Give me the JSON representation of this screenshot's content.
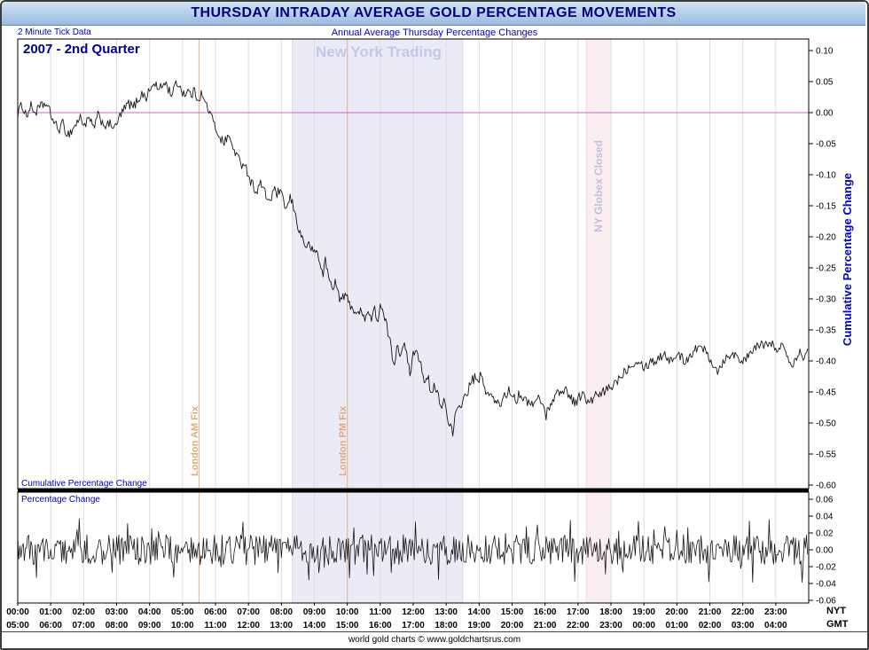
{
  "title": "THURSDAY INTRADAY AVERAGE GOLD PERCENTAGE MOVEMENTS",
  "subheader": {
    "left": "2 Minute Tick Data",
    "center": "Annual Average Thursday Percentage Changes"
  },
  "footer": "world gold charts © www.goldchartsrus.com",
  "labels": {
    "quarter": "2007 - 2nd Quarter",
    "ny_trading": "New York Trading",
    "london_am": "London AM Fix",
    "london_pm": "London PM Fix",
    "globex": "NY Globex Closed",
    "cum_axis": "Cumulative Percentage Change",
    "cum_panel": "Cumulative Percentage Change",
    "pct_panel": "Percentage Change",
    "nyt": "NYT",
    "gmt": "GMT"
  },
  "colors": {
    "series": "#161616",
    "grid": "#dcdcdc",
    "zero_line": "#c965c9",
    "ny_band": "#ebebf8",
    "ny_band_edge": "#d6d6ef",
    "globex_band": "#fceef0",
    "globex_band_edge": "#f2d8da",
    "fix_line": "#e8b287",
    "axis_text": "#000000",
    "blue_text": "#0000cd",
    "title_text": "#000080"
  },
  "chart_data": {
    "type": "line",
    "title": "THURSDAY INTRADAY AVERAGE GOLD PERCENTAGE MOVEMENTS",
    "subtitle": "Annual Average Thursday Percentage Changes",
    "period_label": "2007 - 2nd Quarter",
    "x_axis": {
      "unit": "time of day (2 minute ticks)",
      "nyt_labels": [
        "00:00",
        "01:00",
        "02:00",
        "03:00",
        "04:00",
        "05:00",
        "06:00",
        "07:00",
        "08:00",
        "09:00",
        "10:00",
        "11:00",
        "12:00",
        "13:00",
        "14:00",
        "15:00",
        "16:00",
        "17:00",
        "18:00",
        "19:00",
        "20:00",
        "21:00",
        "22:00",
        "23:00"
      ],
      "gmt_labels": [
        "05:00",
        "06:00",
        "07:00",
        "08:00",
        "09:00",
        "10:00",
        "11:00",
        "12:00",
        "13:00",
        "14:00",
        "15:00",
        "16:00",
        "17:00",
        "18:00",
        "19:00",
        "20:00",
        "21:00",
        "22:00",
        "23:00",
        "00:00",
        "01:00",
        "02:00",
        "03:00",
        "04:00"
      ]
    },
    "annotations": {
      "ny_trading_band": {
        "label": "New York Trading",
        "start_min": 500,
        "end_min": 810
      },
      "globex_band": {
        "label": "NY Globex Closed",
        "start_min": 1035,
        "end_min": 1080
      },
      "london_am_fix_min": 330,
      "london_pm_fix_min": 600
    },
    "panels": [
      {
        "name": "cumulative",
        "ylabel": "Cumulative Percentage Change",
        "ylim": [
          -0.6,
          0.1
        ],
        "yticks": [
          0.1,
          0.05,
          0.0,
          -0.05,
          -0.1,
          -0.15,
          -0.2,
          -0.25,
          -0.3,
          -0.35,
          -0.4,
          -0.45,
          -0.5,
          -0.55,
          -0.6
        ],
        "zero_line": 0.0,
        "series": {
          "name": "cumulative_pct_change",
          "seed": 1234,
          "tick_noise": 0.008,
          "points": [
            [
              0,
              0.0
            ],
            [
              8,
              0.012
            ],
            [
              16,
              -0.005
            ],
            [
              24,
              0.01
            ],
            [
              32,
              0.0
            ],
            [
              40,
              0.008
            ],
            [
              50,
              0.015
            ],
            [
              58,
              0.002
            ],
            [
              66,
              -0.015
            ],
            [
              74,
              -0.028
            ],
            [
              82,
              -0.018
            ],
            [
              90,
              -0.035
            ],
            [
              98,
              -0.03
            ],
            [
              106,
              -0.018
            ],
            [
              114,
              -0.008
            ],
            [
              122,
              -0.02
            ],
            [
              130,
              -0.01
            ],
            [
              138,
              -0.025
            ],
            [
              146,
              -0.005
            ],
            [
              154,
              -0.015
            ],
            [
              162,
              -0.022
            ],
            [
              170,
              -0.018
            ],
            [
              178,
              -0.025
            ],
            [
              186,
              -0.005
            ],
            [
              194,
              0.005
            ],
            [
              202,
              0.015
            ],
            [
              210,
              0.008
            ],
            [
              218,
              0.02
            ],
            [
              226,
              0.03
            ],
            [
              234,
              0.025
            ],
            [
              242,
              0.038
            ],
            [
              250,
              0.048
            ],
            [
              256,
              0.035
            ],
            [
              262,
              0.042
            ],
            [
              268,
              0.05
            ],
            [
              274,
              0.038
            ],
            [
              280,
              0.03
            ],
            [
              286,
              0.042
            ],
            [
              292,
              0.048
            ],
            [
              298,
              0.036
            ],
            [
              304,
              0.03
            ],
            [
              310,
              0.035
            ],
            [
              316,
              0.028
            ],
            [
              322,
              0.035
            ],
            [
              328,
              0.022
            ],
            [
              334,
              0.03
            ],
            [
              340,
              0.018
            ],
            [
              346,
              0.008
            ],
            [
              352,
              -0.005
            ],
            [
              358,
              -0.02
            ],
            [
              364,
              -0.032
            ],
            [
              370,
              -0.042
            ],
            [
              376,
              -0.05
            ],
            [
              382,
              -0.036
            ],
            [
              388,
              -0.048
            ],
            [
              394,
              -0.06
            ],
            [
              400,
              -0.07
            ],
            [
              406,
              -0.085
            ],
            [
              412,
              -0.078
            ],
            [
              418,
              -0.095
            ],
            [
              424,
              -0.11
            ],
            [
              430,
              -0.12
            ],
            [
              436,
              -0.128
            ],
            [
              442,
              -0.112
            ],
            [
              448,
              -0.126
            ],
            [
              454,
              -0.138
            ],
            [
              460,
              -0.142
            ],
            [
              466,
              -0.125
            ],
            [
              472,
              -0.13
            ],
            [
              478,
              -0.128
            ],
            [
              484,
              -0.145
            ],
            [
              490,
              -0.155
            ],
            [
              496,
              -0.138
            ],
            [
              502,
              -0.152
            ],
            [
              508,
              -0.175
            ],
            [
              514,
              -0.195
            ],
            [
              520,
              -0.205
            ],
            [
              526,
              -0.218
            ],
            [
              532,
              -0.212
            ],
            [
              538,
              -0.228
            ],
            [
              544,
              -0.22
            ],
            [
              550,
              -0.245
            ],
            [
              556,
              -0.258
            ],
            [
              560,
              -0.238
            ],
            [
              566,
              -0.265
            ],
            [
              572,
              -0.282
            ],
            [
              578,
              -0.272
            ],
            [
              584,
              -0.295
            ],
            [
              590,
              -0.302
            ],
            [
              596,
              -0.292
            ],
            [
              602,
              -0.305
            ],
            [
              608,
              -0.312
            ],
            [
              614,
              -0.32
            ],
            [
              620,
              -0.328
            ],
            [
              626,
              -0.315
            ],
            [
              632,
              -0.33
            ],
            [
              638,
              -0.322
            ],
            [
              644,
              -0.332
            ],
            [
              650,
              -0.318
            ],
            [
              656,
              -0.335
            ],
            [
              660,
              -0.31
            ],
            [
              666,
              -0.328
            ],
            [
              672,
              -0.345
            ],
            [
              678,
              -0.37
            ],
            [
              682,
              -0.395
            ],
            [
              686,
              -0.405
            ],
            [
              690,
              -0.372
            ],
            [
              696,
              -0.388
            ],
            [
              702,
              -0.37
            ],
            [
              708,
              -0.392
            ],
            [
              714,
              -0.42
            ],
            [
              718,
              -0.398
            ],
            [
              724,
              -0.378
            ],
            [
              730,
              -0.392
            ],
            [
              736,
              -0.412
            ],
            [
              742,
              -0.438
            ],
            [
              748,
              -0.428
            ],
            [
              752,
              -0.458
            ],
            [
              758,
              -0.442
            ],
            [
              764,
              -0.45
            ],
            [
              770,
              -0.475
            ],
            [
              776,
              -0.462
            ],
            [
              782,
              -0.488
            ],
            [
              788,
              -0.505
            ],
            [
              792,
              -0.52
            ],
            [
              796,
              -0.492
            ],
            [
              802,
              -0.478
            ],
            [
              808,
              -0.468
            ],
            [
              814,
              -0.458
            ],
            [
              820,
              -0.448
            ],
            [
              826,
              -0.432
            ],
            [
              832,
              -0.428
            ],
            [
              838,
              -0.438
            ],
            [
              842,
              -0.42
            ],
            [
              848,
              -0.44
            ],
            [
              854,
              -0.45
            ],
            [
              860,
              -0.455
            ],
            [
              866,
              -0.462
            ],
            [
              872,
              -0.468
            ],
            [
              878,
              -0.472
            ],
            [
              884,
              -0.458
            ],
            [
              890,
              -0.452
            ],
            [
              896,
              -0.448
            ],
            [
              902,
              -0.455
            ],
            [
              908,
              -0.462
            ],
            [
              914,
              -0.452
            ],
            [
              920,
              -0.458
            ],
            [
              926,
              -0.468
            ],
            [
              932,
              -0.462
            ],
            [
              938,
              -0.472
            ],
            [
              944,
              -0.465
            ],
            [
              950,
              -0.458
            ],
            [
              956,
              -0.472
            ],
            [
              962,
              -0.488
            ],
            [
              968,
              -0.472
            ],
            [
              974,
              -0.462
            ],
            [
              980,
              -0.455
            ],
            [
              986,
              -0.448
            ],
            [
              992,
              -0.452
            ],
            [
              998,
              -0.445
            ],
            [
              1004,
              -0.455
            ],
            [
              1010,
              -0.462
            ],
            [
              1016,
              -0.468
            ],
            [
              1022,
              -0.458
            ],
            [
              1028,
              -0.452
            ],
            [
              1034,
              -0.462
            ],
            [
              1040,
              -0.47
            ],
            [
              1046,
              -0.462
            ],
            [
              1052,
              -0.455
            ],
            [
              1058,
              -0.458
            ],
            [
              1064,
              -0.452
            ],
            [
              1070,
              -0.448
            ],
            [
              1076,
              -0.445
            ],
            [
              1082,
              -0.44
            ],
            [
              1088,
              -0.435
            ],
            [
              1094,
              -0.428
            ],
            [
              1100,
              -0.422
            ],
            [
              1106,
              -0.415
            ],
            [
              1112,
              -0.41
            ],
            [
              1118,
              -0.405
            ],
            [
              1124,
              -0.4
            ],
            [
              1130,
              -0.398
            ],
            [
              1136,
              -0.405
            ],
            [
              1142,
              -0.41
            ],
            [
              1148,
              -0.405
            ],
            [
              1154,
              -0.398
            ],
            [
              1160,
              -0.402
            ],
            [
              1166,
              -0.395
            ],
            [
              1172,
              -0.392
            ],
            [
              1178,
              -0.388
            ],
            [
              1184,
              -0.395
            ],
            [
              1190,
              -0.402
            ],
            [
              1196,
              -0.392
            ],
            [
              1202,
              -0.388
            ],
            [
              1208,
              -0.395
            ],
            [
              1214,
              -0.4
            ],
            [
              1220,
              -0.395
            ],
            [
              1226,
              -0.388
            ],
            [
              1232,
              -0.382
            ],
            [
              1238,
              -0.378
            ],
            [
              1244,
              -0.382
            ],
            [
              1250,
              -0.378
            ],
            [
              1256,
              -0.388
            ],
            [
              1262,
              -0.398
            ],
            [
              1268,
              -0.408
            ],
            [
              1274,
              -0.415
            ],
            [
              1280,
              -0.408
            ],
            [
              1286,
              -0.398
            ],
            [
              1292,
              -0.392
            ],
            [
              1298,
              -0.388
            ],
            [
              1304,
              -0.392
            ],
            [
              1310,
              -0.388
            ],
            [
              1316,
              -0.398
            ],
            [
              1322,
              -0.402
            ],
            [
              1328,
              -0.395
            ],
            [
              1334,
              -0.39
            ],
            [
              1340,
              -0.382
            ],
            [
              1346,
              -0.375
            ],
            [
              1352,
              -0.372
            ],
            [
              1358,
              -0.38
            ],
            [
              1364,
              -0.372
            ],
            [
              1370,
              -0.365
            ],
            [
              1376,
              -0.378
            ],
            [
              1382,
              -0.388
            ],
            [
              1388,
              -0.378
            ],
            [
              1394,
              -0.372
            ],
            [
              1400,
              -0.388
            ],
            [
              1406,
              -0.398
            ],
            [
              1412,
              -0.405
            ],
            [
              1418,
              -0.392
            ],
            [
              1424,
              -0.382
            ],
            [
              1430,
              -0.392
            ],
            [
              1438,
              -0.388
            ]
          ]
        }
      },
      {
        "name": "percentage_change",
        "ylabel": "Percentage Change",
        "ylim": [
          -0.06,
          0.06
        ],
        "yticks": [
          0.06,
          0.04,
          0.02,
          0.0,
          -0.02,
          -0.04,
          -0.06
        ],
        "series": {
          "name": "pct_change_per_tick",
          "seed": 777,
          "noise_amplitude": 0.018,
          "spike_chance": 0.1,
          "spike_scale": 2.2
        }
      }
    ]
  }
}
